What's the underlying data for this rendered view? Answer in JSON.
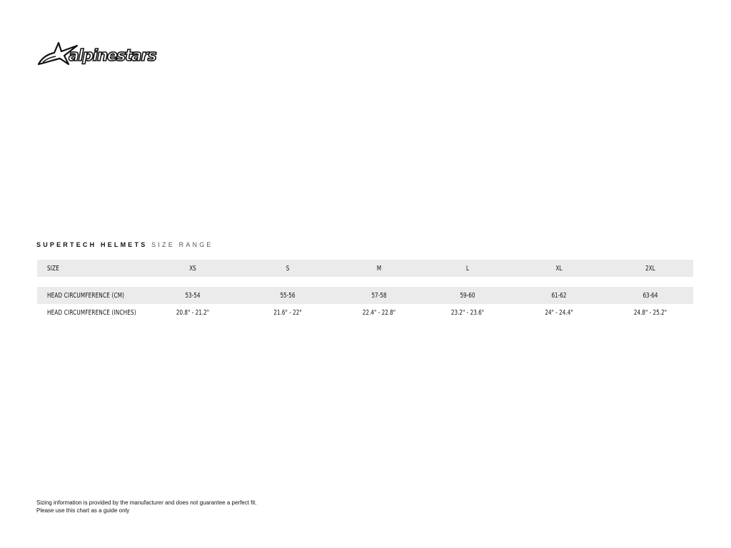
{
  "brand": {
    "name": "alpinestars"
  },
  "title": {
    "bold": "SUPERTECH HELMETS",
    "light": "SIZE RANGE"
  },
  "table": {
    "header": {
      "label": "SIZE",
      "values": [
        "XS",
        "S",
        "M",
        "L",
        "XL",
        "2XL"
      ]
    },
    "rows": [
      {
        "label": "HEAD CIRCUMFERENCE (CM)",
        "values": [
          "53-54",
          "55-56",
          "57-58",
          "59-60",
          "61-62",
          "63-64"
        ]
      },
      {
        "label": "HEAD CIRCUMFERENCE (INCHES)",
        "values": [
          "20.8\" - 21.2\"",
          "21.6\" - 22\"",
          "22.4\" - 22.8\"",
          "23.2\" - 23.6\"",
          "24\" - 24.4\"",
          "24.8\" - 25.2\""
        ]
      }
    ]
  },
  "footer": {
    "line1": "Sizing information is provided by the manufacturer and does not guarantee a perfect fit.",
    "line2": "Please use this chart as a guide only"
  }
}
